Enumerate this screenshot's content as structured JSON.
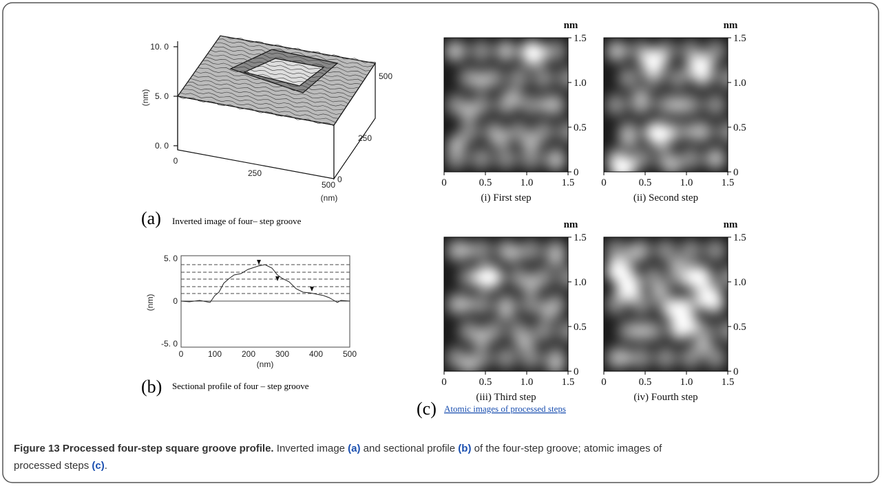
{
  "panel_a": {
    "label": "(a)",
    "caption": "Inverted image of four– step groove",
    "z_ticks": [
      "10. 0",
      "5. 0",
      "0. 0"
    ],
    "z_unit": "(nm)",
    "x_ticks": [
      "0",
      "250",
      "500"
    ],
    "x_unit": "(nm)",
    "y_ticks": [
      "500",
      "250",
      "0"
    ]
  },
  "panel_b": {
    "label": "(b)",
    "caption": "Sectional profile of four – step groove",
    "y_ticks": [
      "5. 0",
      "0",
      "-5. 0"
    ],
    "y_unit": "(nm)",
    "x_ticks": [
      "0",
      "100",
      "200",
      "300",
      "400",
      "500"
    ],
    "x_unit": "(nm)"
  },
  "panel_c": {
    "label": "(c)",
    "caption": "Atomic images of processed steps",
    "images": [
      {
        "title": "(i) First step",
        "unit": "nm",
        "x_ticks": [
          "0",
          "0.5",
          "1.0",
          "1.5"
        ],
        "y_ticks": [
          "1.5",
          "1.0",
          "0.5",
          "0"
        ]
      },
      {
        "title": "(ii) Second step",
        "unit": "nm",
        "x_ticks": [
          "0",
          "0.5",
          "1.0",
          "1.5"
        ],
        "y_ticks": [
          "1.5",
          "1.0",
          "0.5",
          "0"
        ]
      },
      {
        "title": "(iii) Third step",
        "unit": "nm",
        "x_ticks": [
          "0",
          "0.5",
          "1.0",
          "1.5"
        ],
        "y_ticks": [
          "1.5",
          "1.0",
          "0.5",
          "0"
        ]
      },
      {
        "title": "(iv) Fourth step",
        "unit": "nm",
        "x_ticks": [
          "0",
          "0.5",
          "1.0",
          "1.5"
        ],
        "y_ticks": [
          "1.5",
          "1.0",
          "0.5",
          "0"
        ]
      }
    ]
  },
  "caption": {
    "label": "Figure 13 Processed four-step square groove profile.",
    "parts": [
      " Inverted image ",
      "(a)",
      " and sectional profile ",
      "(b)",
      " of the four-step groove; atomic images of",
      "processed steps ",
      "(c)",
      "."
    ]
  }
}
